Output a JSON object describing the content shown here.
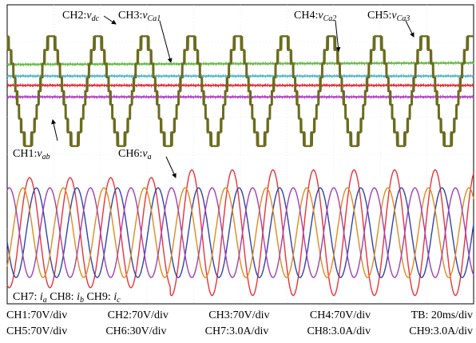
{
  "annotations": {
    "ch2": {
      "prefix": "CH2:",
      "sym": "v",
      "sub": "dc"
    },
    "ch3": {
      "prefix": "CH3:",
      "sym": "v",
      "sub": "Ca1"
    },
    "ch4": {
      "prefix": "CH4:",
      "sym": "v",
      "sub": "Ca2"
    },
    "ch5": {
      "prefix": "CH5:",
      "sym": "v",
      "sub": "Ca3"
    },
    "ch1": {
      "prefix": "CH1:",
      "sym": "v",
      "sub": "ab"
    },
    "ch6": {
      "prefix": "CH6:",
      "sym": "v",
      "sub": "a"
    },
    "ch7": {
      "prefix": "CH7: ",
      "sym": "i",
      "sub": "a"
    },
    "ch8": {
      "prefix": "CH8: ",
      "sym": "i",
      "sub": "b"
    },
    "ch9": {
      "prefix": "CH9: ",
      "sym": "i",
      "sub": "c"
    }
  },
  "settings": {
    "row1": [
      "CH1:70V/div",
      "CH2:70V/div",
      "CH3:70V/div",
      "CH4:70V/div",
      "TB: 20ms/div"
    ],
    "row2": [
      "CH5:70V/div",
      "CH6:30V/div",
      "CH7:3.0A/div",
      "CH8:3.0A/div",
      "CH9:3.0A/div"
    ]
  },
  "chart_data": {
    "type": "line",
    "x_unit": "div",
    "x_range": [
      0,
      10
    ],
    "grid": true,
    "series": [
      {
        "name": "CH2",
        "color": "#66bb44",
        "kind": "dc",
        "level_div": 3.6
      },
      {
        "name": "CH5",
        "color": "#55b8c8",
        "kind": "dc",
        "level_div": 3.1
      },
      {
        "name": "CH3",
        "color": "#e0303a",
        "kind": "dc",
        "level_div": 2.7
      },
      {
        "name": "CH4",
        "color": "#b045c0",
        "kind": "dc",
        "level_div": 2.2
      },
      {
        "name": "CH1",
        "color": "#6b6b1e",
        "kind": "multilevel",
        "amplitude_div": 3.5,
        "periods": 10,
        "steps": 4
      },
      {
        "name": "CH6",
        "color": "#e8333a",
        "kind": "sine",
        "amplitude_div": 1.6,
        "periods": 11.5,
        "phase_deg": 0,
        "amp_step": 2.4
      },
      {
        "name": "CH7",
        "color": "#2f43a8",
        "kind": "sine",
        "amplitude_div": 1.2,
        "periods": 11.5,
        "phase_deg": -60
      },
      {
        "name": "CH8",
        "color": "#e08a1e",
        "kind": "sine",
        "amplitude_div": 1.2,
        "periods": 11.5,
        "phase_deg": 60
      },
      {
        "name": "CH9",
        "color": "#a040b0",
        "kind": "sine",
        "amplitude_div": 1.2,
        "periods": 11.5,
        "phase_deg": 180
      }
    ]
  }
}
